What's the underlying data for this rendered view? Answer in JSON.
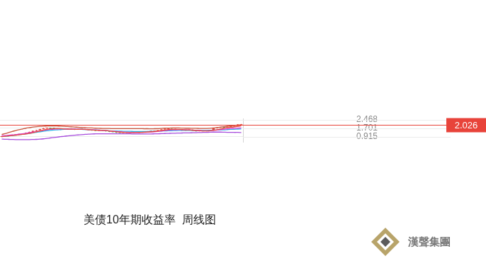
{
  "chart_data": {
    "type": "candlestick",
    "title": "美债10年期收益率  周线图",
    "categories": [
      null,
      null,
      null,
      null,
      null,
      null,
      null,
      null,
      null,
      null,
      null,
      null,
      null,
      null,
      null,
      null,
      null,
      null,
      null,
      null,
      null,
      null,
      null,
      null,
      null,
      null,
      null,
      null,
      null,
      null,
      null,
      null,
      null,
      null,
      null,
      null,
      null,
      null,
      null,
      null,
      null,
      null,
      null,
      null,
      null,
      null,
      null,
      null,
      null,
      null,
      null,
      null,
      null,
      null,
      null,
      null,
      null,
      null,
      null,
      null,
      null,
      null,
      null,
      null,
      null,
      null,
      null,
      null,
      null,
      null
    ],
    "ylim": [
      0.389,
      2.587
    ],
    "yticks": [
      0.915,
      1.701,
      2.468
    ],
    "grid": true,
    "tick_labels": "y",
    "series": [
      {
        "type": "candlestick",
        "open": [
          0.9,
          0.95,
          1.0,
          1.03,
          1.08,
          1.12,
          1.14,
          1.2,
          1.28,
          1.36,
          1.45,
          1.52,
          1.62,
          1.68,
          1.7,
          1.67,
          1.66,
          1.62,
          1.58,
          1.6,
          1.63,
          1.61,
          1.58,
          1.62,
          1.6,
          1.56,
          1.52,
          1.5,
          1.47,
          1.52,
          1.49,
          1.42,
          1.38,
          1.34,
          1.3,
          1.27,
          1.31,
          1.29,
          1.3,
          1.31,
          1.33,
          1.34,
          1.36,
          1.4,
          1.42,
          1.45,
          1.52,
          1.58,
          1.6,
          1.63,
          1.57,
          1.59,
          1.56,
          1.52,
          1.5,
          1.55,
          1.47,
          1.42,
          1.48,
          1.43,
          1.45,
          1.49,
          1.7,
          1.75,
          1.78,
          1.76,
          1.8,
          1.84,
          1.9,
          2.0
        ],
        "high": [
          0.98,
          1.03,
          1.06,
          1.11,
          1.15,
          1.17,
          1.23,
          1.31,
          1.39,
          1.48,
          1.55,
          1.65,
          1.73,
          1.75,
          1.74,
          1.72,
          1.69,
          1.65,
          1.64,
          1.67,
          1.66,
          1.64,
          1.66,
          1.65,
          1.63,
          1.59,
          1.56,
          1.53,
          1.56,
          1.55,
          1.52,
          1.45,
          1.42,
          1.37,
          1.33,
          1.35,
          1.34,
          1.33,
          1.34,
          1.36,
          1.37,
          1.39,
          1.44,
          1.46,
          1.49,
          1.56,
          1.62,
          1.66,
          1.7,
          1.67,
          1.63,
          1.62,
          1.6,
          1.55,
          1.6,
          1.58,
          1.5,
          1.52,
          1.51,
          1.48,
          1.52,
          1.74,
          1.78,
          1.82,
          1.81,
          1.84,
          1.88,
          1.94,
          2.08,
          2.1
        ],
        "low": [
          0.88,
          0.93,
          0.97,
          1.01,
          1.05,
          1.09,
          1.12,
          1.18,
          1.26,
          1.34,
          1.42,
          1.5,
          1.59,
          1.64,
          1.63,
          1.62,
          1.58,
          1.54,
          1.55,
          1.57,
          1.57,
          1.54,
          1.56,
          1.57,
          1.53,
          1.48,
          1.46,
          1.43,
          1.45,
          1.45,
          1.38,
          1.34,
          1.3,
          1.25,
          1.2,
          1.24,
          1.25,
          1.26,
          1.27,
          1.28,
          1.3,
          1.31,
          1.33,
          1.37,
          1.39,
          1.43,
          1.5,
          1.55,
          1.57,
          1.54,
          1.54,
          1.52,
          1.49,
          1.46,
          1.48,
          1.44,
          1.38,
          1.4,
          1.4,
          1.4,
          1.42,
          1.47,
          1.66,
          1.72,
          1.72,
          1.74,
          1.78,
          1.82,
          1.88,
          1.98
        ],
        "close": [
          0.95,
          1.0,
          1.03,
          1.08,
          1.12,
          1.14,
          1.2,
          1.28,
          1.36,
          1.45,
          1.52,
          1.62,
          1.68,
          1.7,
          1.67,
          1.66,
          1.62,
          1.58,
          1.6,
          1.63,
          1.61,
          1.58,
          1.62,
          1.6,
          1.56,
          1.52,
          1.5,
          1.47,
          1.52,
          1.49,
          1.42,
          1.38,
          1.34,
          1.3,
          1.27,
          1.31,
          1.29,
          1.3,
          1.31,
          1.33,
          1.34,
          1.36,
          1.4,
          1.42,
          1.45,
          1.52,
          1.58,
          1.6,
          1.63,
          1.57,
          1.59,
          1.56,
          1.52,
          1.5,
          1.55,
          1.47,
          1.42,
          1.48,
          1.43,
          1.45,
          1.49,
          1.7,
          1.75,
          1.78,
          1.76,
          1.8,
          1.84,
          1.9,
          2.04,
          2.026
        ],
        "colors": [
          "#e8433a",
          "#e8433a",
          "#e8433a",
          "#e8433a",
          "#e8433a",
          "#e8433a",
          "#e8433a",
          "#e8433a",
          "#e8433a",
          "#e8433a",
          "#e8433a",
          "#e8433a",
          "#e8433a",
          "#e8433a",
          "#2fa35a",
          "#2fa35a",
          "#2fa35a",
          "#2fa35a",
          "#e8433a",
          "#e8433a",
          "#2fa35a",
          "#2fa35a",
          "#e8433a",
          "#2fa35a",
          "#2fa35a",
          "#2fa35a",
          "#2fa35a",
          "#2fa35a",
          "#e8433a",
          "#2fa35a",
          "#2fa35a",
          "#2fa35a",
          "#2fa35a",
          "#2fa35a",
          "#2fa35a",
          "#e8433a",
          "#2fa35a",
          "#e8433a",
          "#e8433a",
          "#e8433a",
          "#e8433a",
          "#e8433a",
          "#e8433a",
          "#e8433a",
          "#e8433a",
          "#e8433a",
          "#e8433a",
          "#e8433a",
          "#e8433a",
          "#2fa35a",
          "#e8433a",
          "#2fa35a",
          "#2fa35a",
          "#2fa35a",
          "#e8433a",
          "#2fa35a",
          "#2fa35a",
          "#e8433a",
          "#2fa35a",
          "#e8433a",
          "#e8433a",
          "#e8433a",
          "#e8433a",
          "#e8433a",
          "#2fa35a",
          "#e8433a",
          "#e8433a",
          "#e8433a",
          "#e8433a",
          "#e8433a"
        ]
      },
      {
        "type": "line",
        "color": "#c9553d",
        "values": [
          1.12,
          1.2,
          1.3,
          1.4,
          1.48,
          1.56,
          1.63,
          1.7,
          1.75,
          1.8,
          1.84,
          1.87,
          1.89,
          1.9,
          1.91,
          1.91,
          1.9,
          1.89,
          1.87,
          1.85,
          1.83,
          1.81,
          1.79,
          1.77,
          1.75,
          1.73,
          1.72,
          1.7,
          1.69,
          1.68,
          1.67,
          1.67,
          1.66,
          1.66,
          1.66,
          1.66,
          1.66,
          1.66,
          1.66,
          1.66,
          1.66,
          1.65,
          1.65,
          1.64,
          1.65,
          1.66,
          1.68,
          1.7,
          1.71,
          1.72,
          1.72,
          1.72,
          1.71,
          1.7,
          1.7,
          1.69,
          1.69,
          1.68,
          1.68,
          1.68,
          1.69,
          1.72,
          1.76,
          1.8,
          1.84,
          1.88,
          1.92,
          1.95,
          1.98,
          2.0
        ]
      },
      {
        "type": "line",
        "color": "#e84c3d",
        "values": [
          0.93,
          0.96,
          0.99,
          1.02,
          1.06,
          1.09,
          1.13,
          1.17,
          1.22,
          1.29,
          1.36,
          1.45,
          1.53,
          1.59,
          1.64,
          1.66,
          1.67,
          1.66,
          1.63,
          1.62,
          1.61,
          1.6,
          1.6,
          1.61,
          1.59,
          1.57,
          1.54,
          1.51,
          1.5,
          1.5,
          1.48,
          1.45,
          1.41,
          1.37,
          1.34,
          1.32,
          1.3,
          1.29,
          1.3,
          1.31,
          1.31,
          1.33,
          1.35,
          1.37,
          1.4,
          1.44,
          1.49,
          1.53,
          1.58,
          1.59,
          1.59,
          1.59,
          1.57,
          1.55,
          1.54,
          1.52,
          1.49,
          1.47,
          1.45,
          1.45,
          1.47,
          1.51,
          1.56,
          1.62,
          1.7,
          1.76,
          1.79,
          1.82,
          1.87,
          1.93
        ]
      },
      {
        "type": "line",
        "color": "#dd3fd8",
        "values": [
          1.0,
          1.02,
          1.05,
          1.08,
          1.11,
          1.15,
          1.19,
          1.24,
          1.29,
          1.34,
          1.39,
          1.44,
          1.5,
          1.55,
          1.59,
          1.62,
          1.63,
          1.64,
          1.64,
          1.63,
          1.62,
          1.62,
          1.61,
          1.6,
          1.59,
          1.58,
          1.56,
          1.54,
          1.52,
          1.5,
          1.48,
          1.45,
          1.42,
          1.4,
          1.38,
          1.35,
          1.33,
          1.31,
          1.3,
          1.3,
          1.31,
          1.32,
          1.33,
          1.35,
          1.37,
          1.4,
          1.44,
          1.48,
          1.52,
          1.54,
          1.55,
          1.56,
          1.56,
          1.55,
          1.54,
          1.52,
          1.5,
          1.49,
          1.47,
          1.46,
          1.47,
          1.5,
          1.53,
          1.57,
          1.61,
          1.64,
          1.67,
          1.69,
          1.71,
          1.72
        ]
      },
      {
        "type": "line",
        "color": "#2bb5e6",
        "values": [
          0.92,
          0.95,
          0.98,
          1.02,
          1.06,
          1.1,
          1.14,
          1.18,
          1.22,
          1.27,
          1.32,
          1.37,
          1.42,
          1.46,
          1.5,
          1.53,
          1.55,
          1.57,
          1.59,
          1.6,
          1.6,
          1.6,
          1.6,
          1.59,
          1.58,
          1.57,
          1.55,
          1.54,
          1.52,
          1.5,
          1.48,
          1.46,
          1.45,
          1.44,
          1.43,
          1.42,
          1.41,
          1.41,
          1.4,
          1.4,
          1.4,
          1.4,
          1.4,
          1.41,
          1.42,
          1.43,
          1.44,
          1.45,
          1.46,
          1.47,
          1.48,
          1.49,
          1.49,
          1.5,
          1.5,
          1.5,
          1.5,
          1.5,
          1.5,
          1.5,
          1.51,
          1.52,
          1.53,
          1.54,
          1.55,
          1.57,
          1.59,
          1.6,
          1.62,
          1.63
        ]
      },
      {
        "type": "line",
        "color": "#a64bdc",
        "values": [
          0.7,
          0.68,
          0.67,
          0.66,
          0.65,
          0.65,
          0.65,
          0.65,
          0.65,
          0.66,
          0.67,
          0.69,
          0.72,
          0.76,
          0.8,
          0.84,
          0.88,
          0.92,
          0.96,
          0.99,
          1.02,
          1.05,
          1.08,
          1.11,
          1.13,
          1.15,
          1.17,
          1.18,
          1.19,
          1.19,
          1.19,
          1.18,
          1.18,
          1.18,
          1.18,
          1.18,
          1.18,
          1.18,
          1.17,
          1.17,
          1.17,
          1.17,
          1.17,
          1.17,
          1.18,
          1.19,
          1.2,
          1.21,
          1.22,
          1.23,
          1.24,
          1.25,
          1.26,
          1.27,
          1.27,
          1.28,
          1.29,
          1.3,
          1.31,
          1.32,
          1.33,
          1.34,
          1.34,
          1.34,
          1.33,
          1.32,
          1.32,
          1.31,
          1.31,
          1.3
        ]
      }
    ],
    "annotations": [
      {
        "type": "hline",
        "y": 2.026,
        "color": "#e8433a"
      },
      {
        "type": "text",
        "text": "漢聲集團"
      }
    ]
  }
}
